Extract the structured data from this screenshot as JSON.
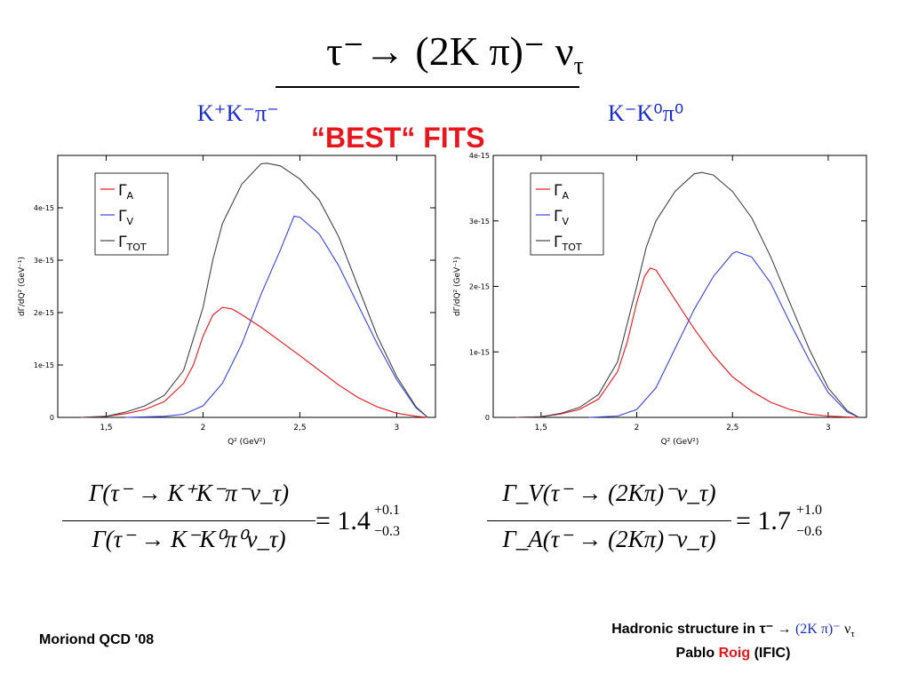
{
  "slide": {
    "title": "τ⁻→ (2K π)⁻ ν",
    "title_sub": "τ",
    "best_fits": "“BEST“ FITS",
    "footer_left": "Moriond QCD '08",
    "footer_right_line1_prefix": "Hadronic structure in τ⁻ →",
    "footer_right_line1_blue": "(2K π)⁻",
    "footer_right_line1_suffix": "ν",
    "footer_right_line1_sub": "τ",
    "footer_right_line2_a": "Pablo",
    "footer_right_line2_red": "Roig",
    "footer_right_line2_b": "(IFIC)"
  },
  "panels": {
    "left_label": "K⁺K⁻π⁻",
    "right_label": "K⁻K⁰π⁰"
  },
  "equations": {
    "left": {
      "numerator": "Γ(τ⁻ → K⁺K⁻π⁻ν_τ)",
      "denominator": "Γ(τ⁻ → K⁻K⁰π⁰ν_τ)",
      "value": "= 1.4",
      "sup": "+0.1",
      "sub": "−0.3"
    },
    "right": {
      "numerator": "Γ_V(τ⁻ → (2Kπ)⁻ν_τ)",
      "denominator": "Γ_A(τ⁻ → (2Kπ)⁻ν_τ)",
      "value": "= 1.7",
      "sup": "+1.0",
      "sub": "−0.6"
    }
  },
  "chart_data": [
    {
      "type": "line",
      "panel": "K⁺K⁻π⁻",
      "xlabel": "Q² (GeV²)",
      "ylabel": "dΓ/dQ² (GeV⁻¹)",
      "xlim": [
        1.25,
        3.2
      ],
      "ylim": [
        0,
        5e-15
      ],
      "x_ticks": [
        "1,5",
        "2",
        "2,5",
        "3"
      ],
      "x_tick_values": [
        1.5,
        2,
        2.5,
        3
      ],
      "y_ticks": [
        "0",
        "1e-15",
        "2e-15",
        "3e-15",
        "4e-15"
      ],
      "y_tick_values": [
        0,
        1e-15,
        2e-15,
        3e-15,
        4e-15
      ],
      "legend_position": "top-left",
      "grid": false,
      "series": [
        {
          "name": "Γ_A",
          "color": "#e8161c",
          "x": [
            1.37,
            1.5,
            1.6,
            1.7,
            1.8,
            1.9,
            1.95,
            2.0,
            2.05,
            2.1,
            2.15,
            2.2,
            2.3,
            2.4,
            2.5,
            2.6,
            2.7,
            2.8,
            2.9,
            3.0,
            3.1,
            3.16
          ],
          "y": [
            0,
            2e-17,
            7e-17,
            1.5e-16,
            3e-16,
            6.5e-16,
            1e-15,
            1.55e-15,
            1.95e-15,
            2.1e-15,
            2.07e-15,
            1.96e-15,
            1.72e-15,
            1.45e-15,
            1.18e-15,
            9e-16,
            6.2e-16,
            3.8e-16,
            2e-16,
            8e-17,
            2e-17,
            0
          ]
        },
        {
          "name": "Γ_V",
          "color": "#3844e0",
          "x": [
            1.6,
            1.8,
            1.9,
            2.0,
            2.1,
            2.2,
            2.3,
            2.4,
            2.47,
            2.5,
            2.6,
            2.7,
            2.8,
            2.9,
            3.0,
            3.1,
            3.16
          ],
          "y": [
            0,
            2e-17,
            6e-17,
            2.2e-16,
            6.5e-16,
            1.4e-15,
            2.35e-15,
            3.2e-15,
            3.84e-15,
            3.82e-15,
            3.5e-15,
            2.9e-15,
            2.15e-15,
            1.4e-15,
            7.2e-16,
            1.8e-16,
            0
          ]
        },
        {
          "name": "Γ_TOT",
          "color": "#444444",
          "x": [
            1.37,
            1.5,
            1.6,
            1.7,
            1.8,
            1.9,
            2.0,
            2.05,
            2.1,
            2.2,
            2.3,
            2.33,
            2.4,
            2.5,
            2.6,
            2.7,
            2.8,
            2.9,
            3.0,
            3.1,
            3.16
          ],
          "y": [
            0,
            2e-17,
            1e-16,
            2.2e-16,
            4.2e-16,
            9e-16,
            2.1e-15,
            3e-15,
            3.7e-15,
            4.45e-15,
            4.84e-15,
            4.85e-15,
            4.8e-15,
            4.55e-15,
            4.15e-15,
            3.45e-15,
            2.5e-15,
            1.55e-15,
            7.8e-16,
            2e-16,
            0
          ]
        }
      ]
    },
    {
      "type": "line",
      "panel": "K⁻K⁰π⁰",
      "xlabel": "Q² (GeV²)",
      "ylabel": "dΓ/dQ² (GeV⁻¹)",
      "xlim": [
        1.25,
        3.2
      ],
      "ylim": [
        0,
        4e-15
      ],
      "x_ticks": [
        "1,5",
        "2",
        "2,5",
        "3"
      ],
      "x_tick_values": [
        1.5,
        2,
        2.5,
        3
      ],
      "y_ticks": [
        "0",
        "1e-15",
        "2e-15",
        "3e-15",
        "4e-15"
      ],
      "y_tick_values": [
        0,
        1e-15,
        2e-15,
        3e-15,
        4e-15
      ],
      "legend_position": "top-left",
      "grid": false,
      "series": [
        {
          "name": "Γ_A",
          "color": "#e8161c",
          "x": [
            1.37,
            1.5,
            1.6,
            1.7,
            1.8,
            1.9,
            1.95,
            2.0,
            2.04,
            2.07,
            2.1,
            2.2,
            2.3,
            2.4,
            2.5,
            2.6,
            2.7,
            2.8,
            2.9,
            3.0,
            3.1,
            3.16
          ],
          "y": [
            0,
            1e-17,
            5e-17,
            1.2e-16,
            2.8e-16,
            7e-16,
            1.15e-15,
            1.75e-15,
            2.15e-15,
            2.28e-15,
            2.25e-15,
            1.8e-15,
            1.35e-15,
            9.5e-16,
            6.2e-16,
            4e-16,
            2.3e-16,
            1.2e-16,
            5e-17,
            2e-17,
            5e-18,
            0
          ]
        },
        {
          "name": "Γ_V",
          "color": "#3844e0",
          "x": [
            1.75,
            1.9,
            2.0,
            2.1,
            2.2,
            2.3,
            2.4,
            2.5,
            2.52,
            2.6,
            2.7,
            2.8,
            2.9,
            3.0,
            3.1,
            3.16
          ],
          "y": [
            0,
            2e-17,
            1.2e-16,
            4.5e-16,
            1.05e-15,
            1.65e-15,
            2.15e-15,
            2.5e-15,
            2.53e-15,
            2.45e-15,
            2.05e-15,
            1.45e-15,
            8.8e-16,
            3.8e-16,
            8e-17,
            0
          ]
        },
        {
          "name": "Γ_TOT",
          "color": "#444444",
          "x": [
            1.37,
            1.5,
            1.6,
            1.7,
            1.8,
            1.9,
            2.0,
            2.05,
            2.1,
            2.2,
            2.3,
            2.34,
            2.4,
            2.5,
            2.6,
            2.7,
            2.8,
            2.9,
            3.0,
            3.1,
            3.16
          ],
          "y": [
            0,
            1e-17,
            6e-17,
            1.5e-16,
            3.5e-16,
            8.5e-16,
            2e-15,
            2.6e-15,
            3e-15,
            3.45e-15,
            3.72e-15,
            3.74e-15,
            3.7e-15,
            3.45e-15,
            3.05e-15,
            2.45e-15,
            1.75e-15,
            1.05e-15,
            4.5e-16,
            1e-16,
            0
          ]
        }
      ]
    }
  ]
}
